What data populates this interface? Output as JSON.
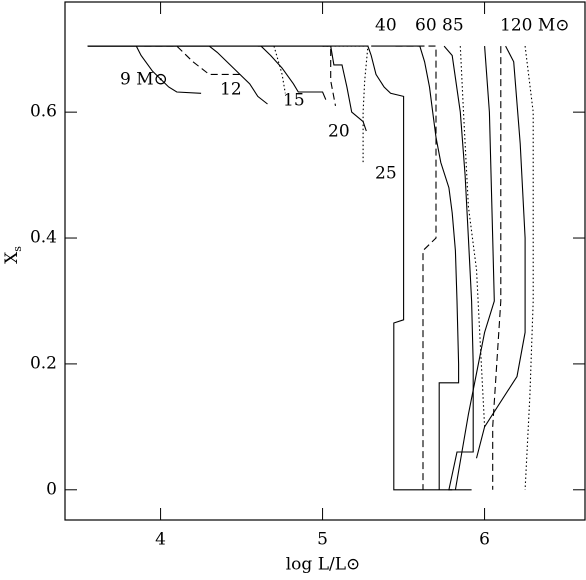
{
  "chart_data": {
    "type": "line",
    "x_label": "log L/L⊙",
    "y_label": {
      "main": "X",
      "sub": "s"
    },
    "xlim": [
      3.41,
      6.62
    ],
    "ylim": [
      -0.048,
      0.775
    ],
    "xticks": [
      4,
      5,
      6
    ],
    "yticks": [
      0,
      0.2,
      0.4,
      0.6
    ],
    "color": "#000000",
    "series": [
      {
        "name": "9 M⊙",
        "dash": "solid",
        "x": [
          3.55,
          3.85,
          3.88,
          3.95,
          4.05,
          4.1,
          4.25
        ],
        "values": [
          0.705,
          0.705,
          0.69,
          0.665,
          0.64,
          0.632,
          0.63
        ]
      },
      {
        "name": "12",
        "dash": "solid",
        "x": [
          3.55,
          4.3,
          4.35,
          4.45,
          4.55,
          4.6,
          4.66
        ],
        "values": [
          0.705,
          0.705,
          0.695,
          0.67,
          0.645,
          0.625,
          0.613
        ]
      },
      {
        "dash": "dashed",
        "x": [
          3.9,
          4.1,
          4.2,
          4.3,
          4.5
        ],
        "values": [
          0.705,
          0.705,
          0.68,
          0.66,
          0.66
        ]
      },
      {
        "name": "15",
        "dash": "solid",
        "x": [
          3.55,
          4.62,
          4.68,
          4.75,
          4.82,
          4.85,
          5.0,
          5.02
        ],
        "values": [
          0.705,
          0.705,
          0.69,
          0.67,
          0.645,
          0.632,
          0.632,
          0.62
        ]
      },
      {
        "dash": "dotted",
        "x": [
          4.7,
          4.75,
          4.77
        ],
        "values": [
          0.705,
          0.66,
          0.63
        ]
      },
      {
        "name": "20",
        "dash": "solid",
        "x": [
          3.55,
          5.05,
          5.07,
          5.12,
          5.15,
          5.18,
          5.25,
          5.27
        ],
        "values": [
          0.705,
          0.705,
          0.675,
          0.675,
          0.64,
          0.6,
          0.585,
          0.57
        ]
      },
      {
        "dash": "dashed",
        "x": [
          5.0,
          5.05,
          5.05,
          5.08
        ],
        "values": [
          0.705,
          0.705,
          0.65,
          0.61
        ]
      },
      {
        "name": "25",
        "dash": "solid",
        "x": [
          4.6,
          5.28,
          5.3,
          5.33,
          5.38,
          5.42,
          5.5,
          5.5,
          5.44,
          5.44,
          5.8
        ],
        "values": [
          0.705,
          0.705,
          0.69,
          0.66,
          0.64,
          0.63,
          0.625,
          0.27,
          0.265,
          0,
          0
        ]
      },
      {
        "dash": "dotted",
        "x": [
          5.0,
          5.28,
          5.26,
          5.25,
          5.25
        ],
        "values": [
          0.705,
          0.705,
          0.65,
          0.6,
          0.52
        ]
      },
      {
        "name": "40",
        "dash": "solid",
        "x": [
          5.3,
          5.6,
          5.63,
          5.66,
          5.68,
          5.7,
          5.73,
          5.78,
          5.8,
          5.82,
          5.83,
          5.84,
          5.84,
          5.72,
          5.72
        ],
        "values": [
          0.705,
          0.705,
          0.68,
          0.64,
          0.6,
          0.56,
          0.52,
          0.48,
          0.44,
          0.38,
          0.3,
          0.2,
          0.17,
          0.17,
          0
        ]
      },
      {
        "dash": "dashed",
        "x": [
          5.45,
          5.7,
          5.7,
          5.62,
          5.62
        ],
        "values": [
          0.705,
          0.705,
          0.4,
          0.38,
          0
        ]
      },
      {
        "name": "60",
        "dash": "solid",
        "x": [
          5.75,
          5.8,
          5.85,
          5.88,
          5.9,
          5.92,
          5.93,
          5.93,
          5.83,
          5.78,
          5.92
        ],
        "values": [
          0.705,
          0.69,
          0.6,
          0.5,
          0.4,
          0.3,
          0.2,
          0.06,
          0.06,
          0,
          0
        ]
      },
      {
        "dash": "dotted",
        "x": [
          5.85,
          5.87,
          5.9,
          5.95,
          5.97,
          6.0
        ],
        "values": [
          0.705,
          0.6,
          0.45,
          0.35,
          0.25,
          0.1
        ]
      },
      {
        "name": "85",
        "dash": "solid",
        "x": [
          6.0,
          6.03,
          6.05,
          6.06,
          6.0,
          5.9,
          5.82
        ],
        "values": [
          0.705,
          0.6,
          0.4,
          0.3,
          0.25,
          0.12,
          0
        ]
      },
      {
        "dash": "dashed",
        "x": [
          6.1,
          6.1,
          6.05,
          6.05
        ],
        "values": [
          0.705,
          0.3,
          0.1,
          0
        ]
      },
      {
        "name": "120 M⊙",
        "dash": "solid",
        "x": [
          6.13,
          6.18,
          6.22,
          6.25,
          6.25,
          6.2,
          6.0,
          5.95
        ],
        "values": [
          0.705,
          0.68,
          0.55,
          0.4,
          0.25,
          0.18,
          0.1,
          0.05
        ]
      },
      {
        "dash": "dotted",
        "x": [
          6.25,
          6.3,
          6.3,
          6.28,
          6.25
        ],
        "values": [
          0.705,
          0.6,
          0.3,
          0.15,
          0
        ]
      }
    ]
  }
}
